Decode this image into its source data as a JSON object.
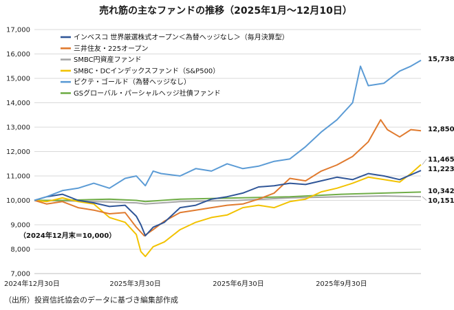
{
  "chart_data": {
    "type": "line",
    "title": "売れ筋の主なファンドの推移（2025年1月～12月10日）",
    "note": "（2024年12月末＝10,000）",
    "source": "（出所）投資信託協会のデータに基づき編集部作成",
    "ylim": [
      7000,
      17000
    ],
    "yticks": [
      "7,000",
      "8,000",
      "9,000",
      "10,000",
      "11,000",
      "12,000",
      "13,000",
      "14,000",
      "15,000",
      "16,000",
      "17,000"
    ],
    "x_range": [
      "2024-12-30",
      "2025-12-10"
    ],
    "xticks": [
      {
        "label": "2024年12月30日",
        "date": "2024-12-30"
      },
      {
        "label": "2025年3月30日",
        "date": "2025-03-30"
      },
      {
        "label": "2025年6月30日",
        "date": "2025-06-30"
      },
      {
        "label": "2025年9月30日",
        "date": "2025-09-30"
      }
    ],
    "grid": true,
    "legend_position": "top-left",
    "series": [
      {
        "name": "インベスコ 世界厳選株式オープン＜為替ヘッジなし＞（毎月決算型）",
        "color": "#2f5597",
        "end_label": "11,223",
        "points": [
          [
            "2024-12-30",
            10000
          ],
          [
            "2025-01-10",
            10150
          ],
          [
            "2025-01-24",
            10250
          ],
          [
            "2025-02-07",
            10000
          ],
          [
            "2025-02-21",
            9900
          ],
          [
            "2025-03-07",
            9750
          ],
          [
            "2025-03-21",
            9800
          ],
          [
            "2025-03-31",
            9350
          ],
          [
            "2025-04-04",
            9000
          ],
          [
            "2025-04-08",
            8550
          ],
          [
            "2025-04-15",
            8900
          ],
          [
            "2025-04-25",
            9100
          ],
          [
            "2025-05-09",
            9700
          ],
          [
            "2025-05-23",
            9800
          ],
          [
            "2025-06-06",
            10050
          ],
          [
            "2025-06-20",
            10150
          ],
          [
            "2025-07-04",
            10300
          ],
          [
            "2025-07-18",
            10550
          ],
          [
            "2025-08-01",
            10600
          ],
          [
            "2025-08-15",
            10700
          ],
          [
            "2025-08-29",
            10650
          ],
          [
            "2025-09-12",
            10800
          ],
          [
            "2025-09-26",
            10950
          ],
          [
            "2025-10-10",
            10850
          ],
          [
            "2025-10-24",
            11100
          ],
          [
            "2025-11-07",
            11000
          ],
          [
            "2025-11-21",
            10850
          ],
          [
            "2025-12-10",
            11223
          ]
        ]
      },
      {
        "name": "三井住友・225オープン",
        "color": "#e07a2e",
        "end_label": "12,850",
        "points": [
          [
            "2024-12-30",
            10000
          ],
          [
            "2025-01-10",
            9850
          ],
          [
            "2025-01-24",
            9950
          ],
          [
            "2025-02-07",
            9700
          ],
          [
            "2025-02-21",
            9600
          ],
          [
            "2025-03-07",
            9450
          ],
          [
            "2025-03-21",
            9500
          ],
          [
            "2025-03-31",
            8900
          ],
          [
            "2025-04-07",
            8550
          ],
          [
            "2025-04-15",
            8800
          ],
          [
            "2025-04-25",
            9150
          ],
          [
            "2025-05-09",
            9500
          ],
          [
            "2025-05-23",
            9600
          ],
          [
            "2025-06-06",
            9700
          ],
          [
            "2025-06-20",
            9800
          ],
          [
            "2025-07-04",
            9850
          ],
          [
            "2025-07-18",
            10050
          ],
          [
            "2025-08-01",
            10300
          ],
          [
            "2025-08-15",
            10900
          ],
          [
            "2025-08-29",
            10800
          ],
          [
            "2025-09-12",
            11200
          ],
          [
            "2025-09-26",
            11450
          ],
          [
            "2025-10-10",
            11800
          ],
          [
            "2025-10-24",
            12400
          ],
          [
            "2025-11-04",
            13300
          ],
          [
            "2025-11-10",
            12900
          ],
          [
            "2025-11-21",
            12600
          ],
          [
            "2025-12-01",
            12900
          ],
          [
            "2025-12-10",
            12850
          ]
        ]
      },
      {
        "name": "SMBC円資産ファンド",
        "color": "#a6a6a6",
        "end_label": "10,151",
        "points": [
          [
            "2024-12-30",
            10000
          ],
          [
            "2025-02-07",
            9970
          ],
          [
            "2025-03-31",
            9900
          ],
          [
            "2025-04-08",
            9850
          ],
          [
            "2025-05-09",
            9950
          ],
          [
            "2025-06-30",
            10000
          ],
          [
            "2025-08-15",
            10100
          ],
          [
            "2025-09-30",
            10150
          ],
          [
            "2025-11-07",
            10180
          ],
          [
            "2025-12-10",
            10151
          ]
        ]
      },
      {
        "name": "SMBC・DCインデックスファンド（S&P500）",
        "color": "#f2c200",
        "end_label": "11,465",
        "points": [
          [
            "2024-12-30",
            10000
          ],
          [
            "2025-01-10",
            9950
          ],
          [
            "2025-01-24",
            10100
          ],
          [
            "2025-02-07",
            9950
          ],
          [
            "2025-02-21",
            9850
          ],
          [
            "2025-03-07",
            9300
          ],
          [
            "2025-03-21",
            9100
          ],
          [
            "2025-03-31",
            8600
          ],
          [
            "2025-04-04",
            7900
          ],
          [
            "2025-04-08",
            7700
          ],
          [
            "2025-04-15",
            8100
          ],
          [
            "2025-04-25",
            8300
          ],
          [
            "2025-05-09",
            8800
          ],
          [
            "2025-05-23",
            9100
          ],
          [
            "2025-06-06",
            9300
          ],
          [
            "2025-06-20",
            9400
          ],
          [
            "2025-07-04",
            9700
          ],
          [
            "2025-07-18",
            9800
          ],
          [
            "2025-08-01",
            9700
          ],
          [
            "2025-08-15",
            9950
          ],
          [
            "2025-08-29",
            10050
          ],
          [
            "2025-09-12",
            10350
          ],
          [
            "2025-09-26",
            10500
          ],
          [
            "2025-10-10",
            10700
          ],
          [
            "2025-10-24",
            10950
          ],
          [
            "2025-11-07",
            10850
          ],
          [
            "2025-11-21",
            10750
          ],
          [
            "2025-12-01",
            11100
          ],
          [
            "2025-12-10",
            11465
          ]
        ]
      },
      {
        "name": "ピクテ・ゴールド（為替ヘッジなし）",
        "color": "#5b9bd5",
        "end_label": "15,738",
        "points": [
          [
            "2024-12-30",
            10000
          ],
          [
            "2025-01-10",
            10150
          ],
          [
            "2025-01-24",
            10400
          ],
          [
            "2025-02-07",
            10500
          ],
          [
            "2025-02-21",
            10700
          ],
          [
            "2025-03-07",
            10500
          ],
          [
            "2025-03-21",
            10900
          ],
          [
            "2025-03-31",
            11000
          ],
          [
            "2025-04-08",
            10600
          ],
          [
            "2025-04-15",
            11200
          ],
          [
            "2025-04-22",
            11100
          ],
          [
            "2025-05-09",
            11000
          ],
          [
            "2025-05-23",
            11300
          ],
          [
            "2025-06-06",
            11200
          ],
          [
            "2025-06-20",
            11500
          ],
          [
            "2025-07-04",
            11300
          ],
          [
            "2025-07-18",
            11400
          ],
          [
            "2025-08-01",
            11600
          ],
          [
            "2025-08-15",
            11700
          ],
          [
            "2025-08-29",
            12200
          ],
          [
            "2025-09-12",
            12800
          ],
          [
            "2025-09-26",
            13300
          ],
          [
            "2025-10-10",
            14000
          ],
          [
            "2025-10-17",
            15500
          ],
          [
            "2025-10-24",
            14700
          ],
          [
            "2025-11-07",
            14800
          ],
          [
            "2025-11-21",
            15300
          ],
          [
            "2025-12-01",
            15500
          ],
          [
            "2025-12-10",
            15738
          ]
        ]
      },
      {
        "name": "GSグローバル・パーシャルヘッジ社債ファンド",
        "color": "#70ad47",
        "end_label": "10,342",
        "points": [
          [
            "2024-12-30",
            10000
          ],
          [
            "2025-01-24",
            10000
          ],
          [
            "2025-03-07",
            10050
          ],
          [
            "2025-03-31",
            10000
          ],
          [
            "2025-04-08",
            9950
          ],
          [
            "2025-05-09",
            10050
          ],
          [
            "2025-06-30",
            10100
          ],
          [
            "2025-08-15",
            10150
          ],
          [
            "2025-09-30",
            10250
          ],
          [
            "2025-11-07",
            10300
          ],
          [
            "2025-12-10",
            10342
          ]
        ]
      }
    ]
  }
}
